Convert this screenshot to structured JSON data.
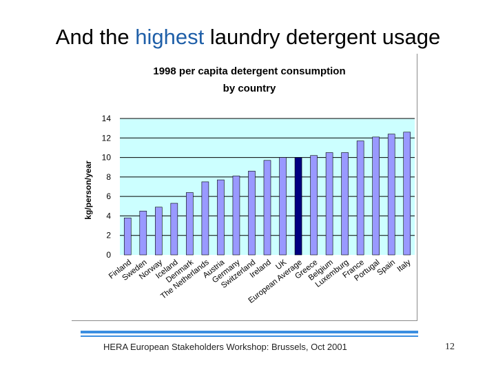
{
  "slide": {
    "title_pre": "And the ",
    "title_highlight": "highest",
    "title_post": " laundry detergent usage",
    "footer": "HERA  European Stakeholders Workshop:  Brussels, Oct 2001",
    "page_number": "12"
  },
  "colors": {
    "plot_background": "#ccffff",
    "bar_fill": "#9999ff",
    "bar_highlight": "#000080",
    "title_highlight": "#1f5fa8",
    "footer_rule": "#3b8ee0"
  },
  "chart_data": {
    "type": "bar",
    "title_line1": "1998 per capita detergent consumption",
    "title_line2": "by country",
    "xlabel": "",
    "ylabel": "kg/person/year",
    "ylim": [
      0,
      14
    ],
    "yticks": [
      0,
      2,
      4,
      6,
      8,
      10,
      12,
      14
    ],
    "grid": true,
    "highlight_category": "European Average",
    "categories": [
      "Finland",
      "Sweden",
      "Norway",
      "Iceland",
      "Denmark",
      "The Netherlands",
      "Austria",
      "Germany",
      "Switzerland",
      "Ireland",
      "UK",
      "European Average",
      "Greece",
      "Belgium",
      "Luxemburg",
      "France",
      "Portugal",
      "Spain",
      "Italy"
    ],
    "values": [
      3.8,
      4.5,
      4.9,
      5.3,
      6.4,
      7.5,
      7.7,
      8.1,
      8.6,
      9.7,
      10.0,
      10.0,
      10.2,
      10.5,
      10.5,
      11.7,
      12.1,
      12.4,
      12.6
    ]
  }
}
